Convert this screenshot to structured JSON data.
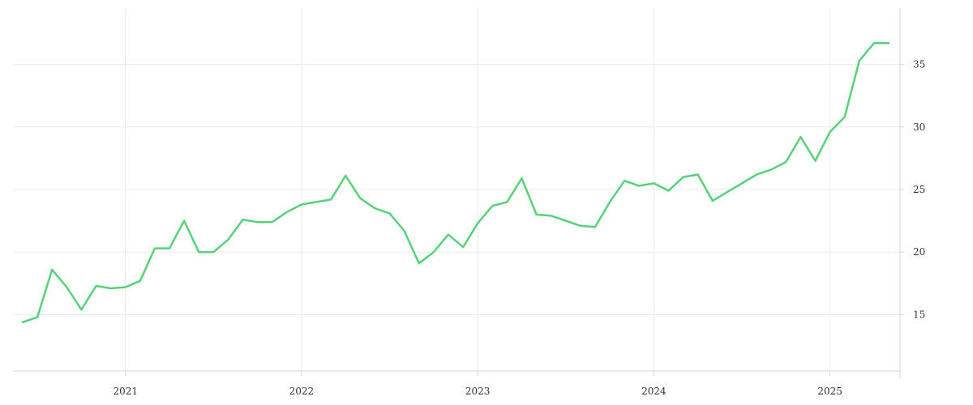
{
  "chart_data": {
    "type": "line",
    "x_tick_labels": [
      "2021",
      "2022",
      "2023",
      "2024",
      "2025"
    ],
    "y_tick_labels": [
      "15",
      "20",
      "25",
      "30",
      "35"
    ],
    "xlim": [
      "2020-06",
      "2025-05"
    ],
    "ylim": [
      10.5,
      39.5
    ],
    "grid": true,
    "y_axis_side": "right",
    "colors": {
      "line": "#59d07a",
      "grid": "#ececec"
    },
    "series": [
      {
        "x": [
          "2020-06",
          "2020-07",
          "2020-08",
          "2020-09",
          "2020-10",
          "2020-11",
          "2020-12",
          "2021-01",
          "2021-02",
          "2021-03",
          "2021-04",
          "2021-05",
          "2021-06",
          "2021-07",
          "2021-08",
          "2021-09",
          "2021-10",
          "2021-11",
          "2021-12",
          "2022-01",
          "2022-02",
          "2022-03",
          "2022-04",
          "2022-05",
          "2022-06",
          "2022-07",
          "2022-08",
          "2022-09",
          "2022-10",
          "2022-11",
          "2022-12",
          "2023-01",
          "2023-02",
          "2023-03",
          "2023-04",
          "2023-05",
          "2023-06",
          "2023-07",
          "2023-08",
          "2023-09",
          "2023-10",
          "2023-11",
          "2023-12",
          "2024-01",
          "2024-02",
          "2024-03",
          "2024-04",
          "2024-05",
          "2024-06",
          "2024-07",
          "2024-08",
          "2024-09",
          "2024-10",
          "2024-11",
          "2024-12",
          "2025-01",
          "2025-02",
          "2025-03",
          "2025-04",
          "2025-05"
        ],
        "y": [
          14.4,
          14.8,
          18.6,
          17.2,
          15.4,
          17.3,
          17.1,
          17.2,
          17.7,
          20.3,
          20.3,
          22.5,
          20.0,
          20.0,
          21.0,
          22.6,
          22.4,
          22.4,
          23.2,
          23.8,
          24.0,
          24.2,
          26.1,
          24.3,
          23.5,
          23.1,
          21.7,
          19.1,
          20.0,
          21.4,
          20.4,
          22.3,
          23.7,
          24.0,
          25.9,
          23.0,
          22.9,
          22.5,
          22.1,
          22.0,
          24.0,
          25.7,
          25.3,
          25.5,
          24.9,
          26.0,
          26.2,
          24.1,
          24.8,
          25.5,
          26.2,
          26.6,
          27.2,
          29.2,
          27.3,
          29.6,
          30.8,
          35.3,
          36.7,
          36.7
        ]
      }
    ]
  }
}
